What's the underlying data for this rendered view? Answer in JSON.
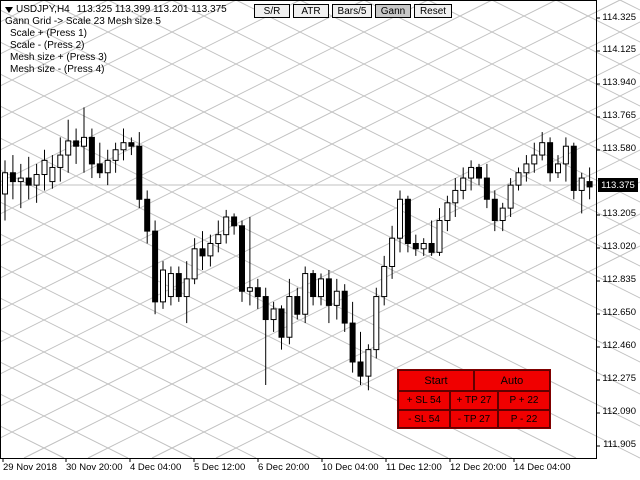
{
  "header": {
    "symbol": "USDJPY,H4",
    "ohlc": "113.325 113.399 113.201 113.375"
  },
  "info_lines": [
    "Gann Grid -> Scale 23 Mesh size 5",
    "Scale + (Press 1)",
    "Scale - (Press 2)",
    "Mesh size + (Press 3)",
    "Mesh size - (Press 4)"
  ],
  "toolbar": {
    "sr": "S/R",
    "atr": "ATR",
    "bars": "Bars/5",
    "gann": "Gann",
    "reset": "Reset"
  },
  "price_axis": [
    "114.325",
    "114.125",
    "113.940",
    "113.765",
    "113.580",
    "113.205",
    "113.020",
    "112.835",
    "112.650",
    "112.460",
    "112.275",
    "112.090",
    "111.905"
  ],
  "current_price": "113.375",
  "time_axis": [
    "29 Nov 2018",
    "30 Nov 20:00",
    "4 Dec 04:00",
    "5 Dec 12:00",
    "6 Dec 20:00",
    "10 Dec 04:00",
    "11 Dec 12:00",
    "12 Dec 20:00",
    "14 Dec 04:00"
  ],
  "panel": {
    "start": "Start",
    "auto": "Auto",
    "sl_plus": "+ SL 54",
    "tp_plus": "+ TP 27",
    "p_plus": "P + 22",
    "sl_minus": "- SL 54",
    "tp_minus": "- TP 27",
    "p_minus": "P - 22"
  },
  "colors": {
    "panel_bg": "#ff0000",
    "grid": "#c0c0c0",
    "candle": "#000000"
  },
  "chart_data": {
    "type": "candlestick",
    "ylim": [
      111.8,
      114.4
    ],
    "x_categories": [
      "29 Nov 2018",
      "30 Nov 20:00",
      "4 Dec 04:00",
      "5 Dec 12:00",
      "6 Dec 20:00",
      "10 Dec 04:00",
      "11 Dec 12:00",
      "12 Dec 20:00",
      "14 Dec 04:00"
    ],
    "candles": [
      {
        "o": 113.33,
        "h": 113.52,
        "l": 113.18,
        "c": 113.45
      },
      {
        "o": 113.45,
        "h": 113.55,
        "l": 113.3,
        "c": 113.4
      },
      {
        "o": 113.4,
        "h": 113.5,
        "l": 113.25,
        "c": 113.42
      },
      {
        "o": 113.42,
        "h": 113.54,
        "l": 113.3,
        "c": 113.38
      },
      {
        "o": 113.38,
        "h": 113.5,
        "l": 113.28,
        "c": 113.44
      },
      {
        "o": 113.44,
        "h": 113.58,
        "l": 113.35,
        "c": 113.52
      },
      {
        "o": 113.4,
        "h": 113.55,
        "l": 113.36,
        "c": 113.48
      },
      {
        "o": 113.48,
        "h": 113.65,
        "l": 113.4,
        "c": 113.55
      },
      {
        "o": 113.55,
        "h": 113.75,
        "l": 113.45,
        "c": 113.63
      },
      {
        "o": 113.63,
        "h": 113.7,
        "l": 113.5,
        "c": 113.6
      },
      {
        "o": 113.6,
        "h": 113.82,
        "l": 113.45,
        "c": 113.65
      },
      {
        "o": 113.65,
        "h": 113.7,
        "l": 113.42,
        "c": 113.5
      },
      {
        "o": 113.5,
        "h": 113.62,
        "l": 113.42,
        "c": 113.45
      },
      {
        "o": 113.45,
        "h": 113.58,
        "l": 113.38,
        "c": 113.52
      },
      {
        "o": 113.52,
        "h": 113.62,
        "l": 113.45,
        "c": 113.58
      },
      {
        "o": 113.58,
        "h": 113.7,
        "l": 113.52,
        "c": 113.62
      },
      {
        "o": 113.62,
        "h": 113.65,
        "l": 113.55,
        "c": 113.6
      },
      {
        "o": 113.6,
        "h": 113.68,
        "l": 113.25,
        "c": 113.3
      },
      {
        "o": 113.3,
        "h": 113.35,
        "l": 113.05,
        "c": 113.12
      },
      {
        "o": 113.12,
        "h": 113.18,
        "l": 112.65,
        "c": 112.72
      },
      {
        "o": 112.72,
        "h": 112.95,
        "l": 112.68,
        "c": 112.9
      },
      {
        "o": 112.75,
        "h": 112.92,
        "l": 112.7,
        "c": 112.88
      },
      {
        "o": 112.88,
        "h": 112.92,
        "l": 112.72,
        "c": 112.75
      },
      {
        "o": 112.75,
        "h": 112.95,
        "l": 112.6,
        "c": 112.85
      },
      {
        "o": 112.85,
        "h": 113.08,
        "l": 112.82,
        "c": 113.02
      },
      {
        "o": 113.02,
        "h": 113.12,
        "l": 112.9,
        "c": 112.98
      },
      {
        "o": 112.98,
        "h": 113.1,
        "l": 112.92,
        "c": 113.05
      },
      {
        "o": 113.05,
        "h": 113.18,
        "l": 113.0,
        "c": 113.1
      },
      {
        "o": 113.1,
        "h": 113.24,
        "l": 113.05,
        "c": 113.2
      },
      {
        "o": 113.2,
        "h": 113.22,
        "l": 113.1,
        "c": 113.15
      },
      {
        "o": 113.15,
        "h": 113.18,
        "l": 112.72,
        "c": 112.78
      },
      {
        "o": 112.78,
        "h": 113.2,
        "l": 112.7,
        "c": 112.8
      },
      {
        "o": 112.8,
        "h": 112.85,
        "l": 112.68,
        "c": 112.75
      },
      {
        "o": 112.75,
        "h": 112.8,
        "l": 112.25,
        "c": 112.62
      },
      {
        "o": 112.62,
        "h": 112.72,
        "l": 112.55,
        "c": 112.68
      },
      {
        "o": 112.68,
        "h": 112.7,
        "l": 112.45,
        "c": 112.52
      },
      {
        "o": 112.52,
        "h": 112.85,
        "l": 112.48,
        "c": 112.75
      },
      {
        "o": 112.75,
        "h": 112.8,
        "l": 112.62,
        "c": 112.65
      },
      {
        "o": 112.65,
        "h": 112.92,
        "l": 112.6,
        "c": 112.88
      },
      {
        "o": 112.88,
        "h": 112.9,
        "l": 112.7,
        "c": 112.75
      },
      {
        "o": 112.75,
        "h": 112.88,
        "l": 112.7,
        "c": 112.85
      },
      {
        "o": 112.85,
        "h": 112.9,
        "l": 112.6,
        "c": 112.7
      },
      {
        "o": 112.7,
        "h": 112.85,
        "l": 112.62,
        "c": 112.78
      },
      {
        "o": 112.78,
        "h": 112.82,
        "l": 112.55,
        "c": 112.6
      },
      {
        "o": 112.6,
        "h": 112.72,
        "l": 112.32,
        "c": 112.38
      },
      {
        "o": 112.38,
        "h": 112.55,
        "l": 112.25,
        "c": 112.3
      },
      {
        "o": 112.3,
        "h": 112.48,
        "l": 112.22,
        "c": 112.45
      },
      {
        "o": 112.45,
        "h": 112.8,
        "l": 112.4,
        "c": 112.75
      },
      {
        "o": 112.75,
        "h": 112.98,
        "l": 112.7,
        "c": 112.92
      },
      {
        "o": 112.92,
        "h": 113.15,
        "l": 112.85,
        "c": 113.08
      },
      {
        "o": 113.08,
        "h": 113.35,
        "l": 113.0,
        "c": 113.3
      },
      {
        "o": 113.3,
        "h": 113.32,
        "l": 113.0,
        "c": 113.05
      },
      {
        "o": 113.05,
        "h": 113.1,
        "l": 112.98,
        "c": 113.02
      },
      {
        "o": 113.02,
        "h": 113.08,
        "l": 112.98,
        "c": 113.05
      },
      {
        "o": 113.05,
        "h": 113.18,
        "l": 112.98,
        "c": 113.0
      },
      {
        "o": 113.0,
        "h": 113.25,
        "l": 112.98,
        "c": 113.18
      },
      {
        "o": 113.18,
        "h": 113.32,
        "l": 113.12,
        "c": 113.28
      },
      {
        "o": 113.28,
        "h": 113.42,
        "l": 113.2,
        "c": 113.35
      },
      {
        "o": 113.35,
        "h": 113.48,
        "l": 113.3,
        "c": 113.42
      },
      {
        "o": 113.42,
        "h": 113.52,
        "l": 113.35,
        "c": 113.48
      },
      {
        "o": 113.48,
        "h": 113.5,
        "l": 113.38,
        "c": 113.42
      },
      {
        "o": 113.42,
        "h": 113.5,
        "l": 113.25,
        "c": 113.3
      },
      {
        "o": 113.3,
        "h": 113.35,
        "l": 113.12,
        "c": 113.18
      },
      {
        "o": 113.18,
        "h": 113.28,
        "l": 113.12,
        "c": 113.25
      },
      {
        "o": 113.25,
        "h": 113.42,
        "l": 113.2,
        "c": 113.38
      },
      {
        "o": 113.38,
        "h": 113.48,
        "l": 113.35,
        "c": 113.45
      },
      {
        "o": 113.45,
        "h": 113.55,
        "l": 113.4,
        "c": 113.5
      },
      {
        "o": 113.5,
        "h": 113.62,
        "l": 113.45,
        "c": 113.55
      },
      {
        "o": 113.55,
        "h": 113.68,
        "l": 113.52,
        "c": 113.62
      },
      {
        "o": 113.62,
        "h": 113.65,
        "l": 113.4,
        "c": 113.45
      },
      {
        "o": 113.45,
        "h": 113.55,
        "l": 113.42,
        "c": 113.5
      },
      {
        "o": 113.5,
        "h": 113.65,
        "l": 113.4,
        "c": 113.6
      },
      {
        "o": 113.6,
        "h": 113.62,
        "l": 113.3,
        "c": 113.35
      },
      {
        "o": 113.35,
        "h": 113.45,
        "l": 113.22,
        "c": 113.42
      },
      {
        "o": 113.4,
        "h": 113.48,
        "l": 113.3,
        "c": 113.37
      }
    ]
  }
}
